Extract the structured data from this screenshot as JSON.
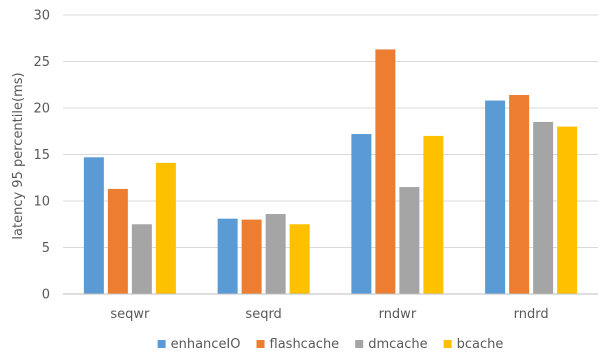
{
  "chart_data": {
    "type": "bar",
    "title": "",
    "xlabel": "",
    "ylabel": "latency 95 percentile(ms)",
    "ylim": [
      0,
      30
    ],
    "yticks": [
      0,
      5,
      10,
      15,
      20,
      25,
      30
    ],
    "grid": true,
    "legend_position": "bottom",
    "categories": [
      "seqwr",
      "seqrd",
      "rndwr",
      "rndrd"
    ],
    "series": [
      {
        "name": "enhanceIO",
        "color": "#5b9bd5",
        "values": [
          14.7,
          8.1,
          17.2,
          20.8
        ]
      },
      {
        "name": "flashcache",
        "color": "#ed7d31",
        "values": [
          11.3,
          8.0,
          26.3,
          21.4
        ]
      },
      {
        "name": "dmcache",
        "color": "#a5a5a5",
        "values": [
          7.5,
          8.6,
          11.5,
          18.5
        ]
      },
      {
        "name": "bcache",
        "color": "#ffc000",
        "values": [
          14.1,
          7.5,
          17.0,
          18.0
        ]
      }
    ]
  }
}
